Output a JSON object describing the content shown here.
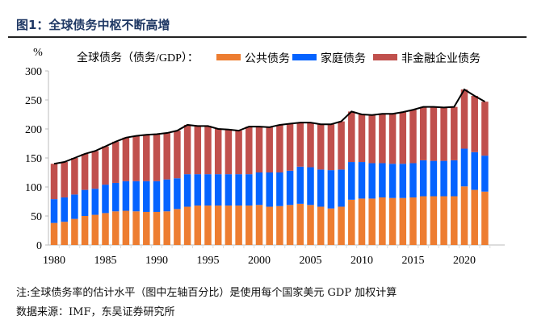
{
  "title": "图1：全球债务中枢不断高增",
  "notes": [
    "注:全球债务率的估计水平（图中左轴百分比）是使用每个国家美元 GDP 加权计算",
    "数据来源：IMF，东吴证券研究所"
  ],
  "chart_data": {
    "type": "bar",
    "stacked": true,
    "title": "",
    "ylabel": "%",
    "ylim": [
      0,
      300
    ],
    "yticks": [
      0,
      50,
      100,
      150,
      200,
      250,
      300
    ],
    "xticks": [
      1980,
      1985,
      1990,
      1995,
      2000,
      2005,
      2010,
      2015,
      2020
    ],
    "legend_prefix": "全球债务（债务/GDP）：",
    "legend_position": "top",
    "categories": [
      1980,
      1981,
      1982,
      1983,
      1984,
      1985,
      1986,
      1987,
      1988,
      1989,
      1990,
      1991,
      1992,
      1993,
      1994,
      1995,
      1996,
      1997,
      1998,
      1999,
      2000,
      2001,
      2002,
      2003,
      2004,
      2005,
      2006,
      2007,
      2008,
      2009,
      2010,
      2011,
      2012,
      2013,
      2014,
      2015,
      2016,
      2017,
      2018,
      2019,
      2020,
      2021,
      2022
    ],
    "series": [
      {
        "name": "公共债务",
        "color": "#ed7d31",
        "values": [
          38,
          40,
          45,
          50,
          52,
          55,
          58,
          59,
          58,
          57,
          57,
          58,
          62,
          66,
          68,
          68,
          68,
          68,
          68,
          68,
          69,
          66,
          67,
          69,
          71,
          69,
          66,
          63,
          66,
          78,
          80,
          80,
          82,
          81,
          81,
          82,
          84,
          84,
          84,
          84,
          101,
          95,
          92
        ]
      },
      {
        "name": "家庭债务",
        "color": "#0563ff",
        "values": [
          41,
          42,
          42,
          45,
          45,
          49,
          49,
          51,
          52,
          53,
          53,
          55,
          53,
          56,
          54,
          54,
          54,
          54,
          54,
          54,
          56,
          59,
          58,
          59,
          64,
          65,
          64,
          66,
          64,
          65,
          63,
          61,
          59,
          59,
          59,
          59,
          62,
          61,
          61,
          62,
          65,
          65,
          62
        ]
      },
      {
        "name": "非金融企业债务",
        "color": "#c0504d",
        "values": [
          61,
          61,
          63,
          62,
          65,
          66,
          71,
          75,
          78,
          80,
          81,
          80,
          82,
          85,
          83,
          83,
          78,
          77,
          75,
          82,
          79,
          78,
          82,
          81,
          76,
          77,
          78,
          79,
          83,
          87,
          82,
          83,
          85,
          86,
          89,
          92,
          92,
          93,
          92,
          92,
          102,
          97,
          93
        ]
      }
    ],
    "total_line": {
      "color": "#000000",
      "values": [
        140,
        143,
        150,
        157,
        162,
        170,
        178,
        185,
        188,
        190,
        191,
        193,
        197,
        207,
        205,
        205,
        200,
        199,
        197,
        204,
        204,
        203,
        207,
        209,
        211,
        211,
        208,
        208,
        213,
        230,
        225,
        224,
        226,
        226,
        229,
        233,
        238,
        238,
        237,
        238,
        268,
        257,
        247
      ]
    }
  }
}
